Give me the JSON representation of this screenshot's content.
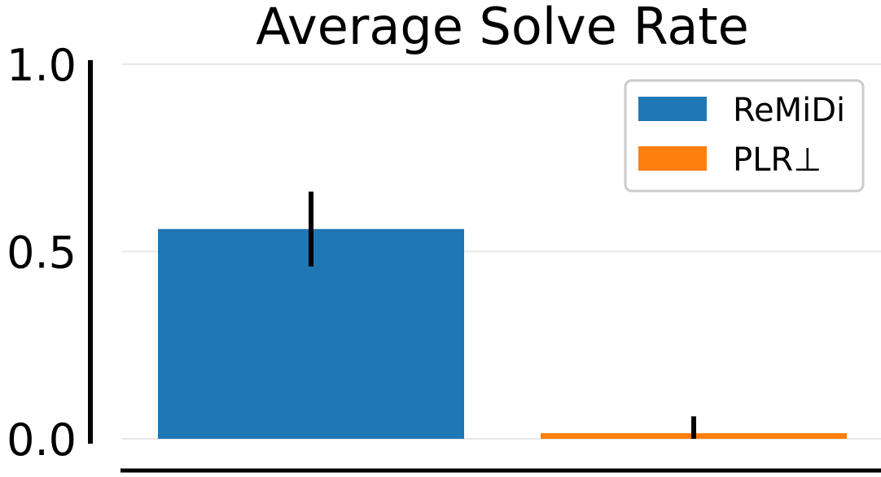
{
  "chart_data": {
    "type": "bar",
    "title": "Average Solve Rate",
    "xlabel": "",
    "ylabel": "",
    "ylim": [
      0,
      1
    ],
    "yticks": [
      {
        "value": 0.0,
        "label": "0.0"
      },
      {
        "value": 0.5,
        "label": "0.5"
      },
      {
        "value": 1.0,
        "label": "1.0"
      }
    ],
    "grid": true,
    "legend_position": "top-right",
    "series": [
      {
        "name": "ReMiDi",
        "value": 0.56,
        "error": 0.1,
        "color": "#1f77b4"
      },
      {
        "name": "PLR⊥",
        "value": 0.015,
        "error": 0.045,
        "color": "#ff7f0e"
      }
    ]
  }
}
